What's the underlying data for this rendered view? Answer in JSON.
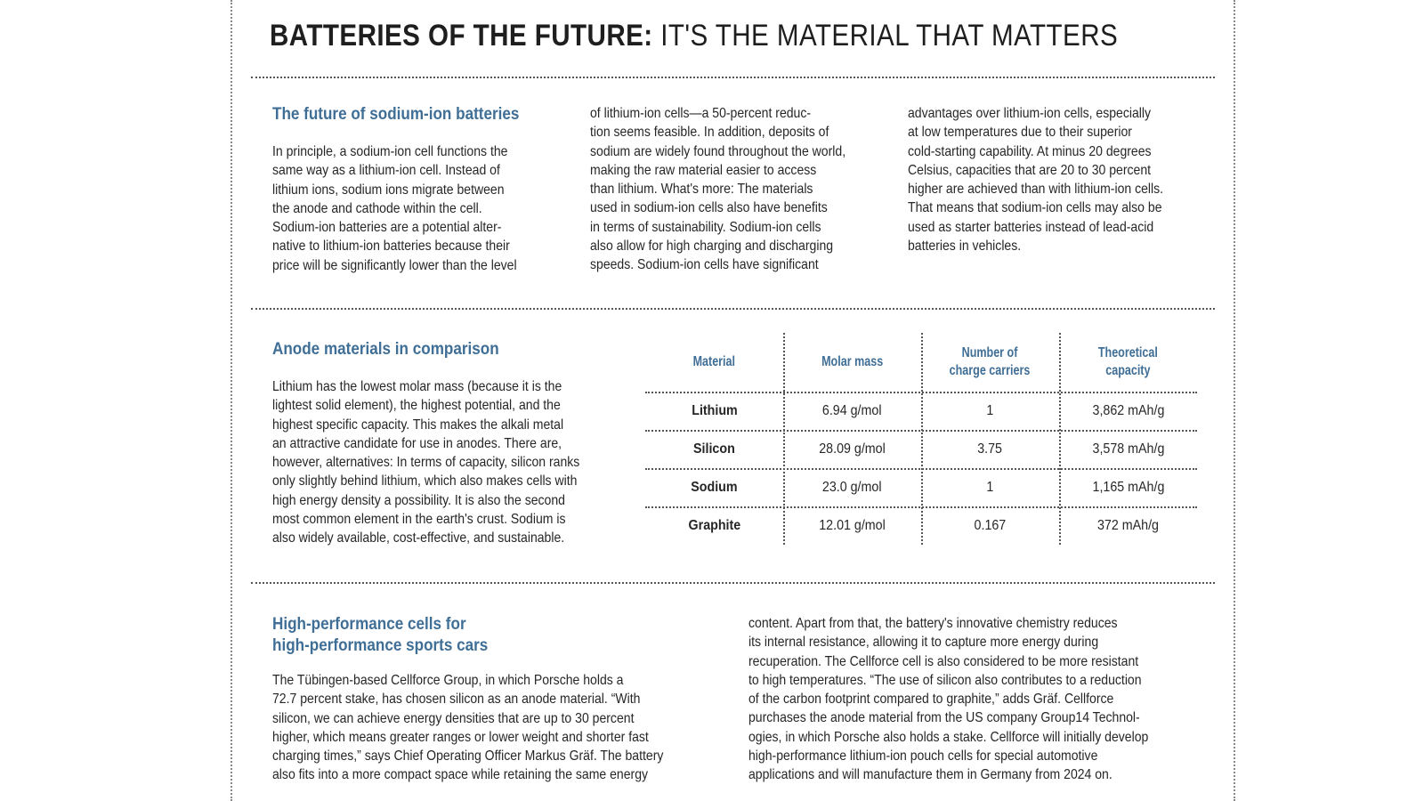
{
  "title": {
    "bold": "BATTERIES OF THE FUTURE:",
    "light": "IT'S THE MATERIAL THAT MATTERS"
  },
  "sodium": {
    "heading": "The future of sodium-ion batteries",
    "col1": [
      "In principle, a sodium-ion cell functions the",
      "same way as a lithium-ion cell. Instead of",
      "lithium ions, sodium ions migrate between",
      "the anode and cathode within the cell.",
      "Sodium-ion batteries are a potential alter-",
      "native to lithium-ion batteries because their",
      "price will be significantly lower than the level"
    ],
    "col2": [
      "of lithium-ion cells—a 50-percent reduc-",
      "tion seems feasible. In addition, deposits of",
      "sodium are widely found throughout the world,",
      "making the raw material easier to access",
      "than lithium. What's more: The materials",
      "used in sodium-ion cells also have benefits",
      "in terms of sustainability. Sodium-ion cells",
      "also allow for high charging and discharging",
      "speeds. Sodium-ion cells have significant"
    ],
    "col3": [
      "advantages over lithium-ion cells, especially",
      "at low temperatures due to their superior",
      "cold-starting capability. At minus 20 degrees",
      "Celsius, capacities that are 20 to 30 percent",
      "higher are achieved than with lithium-ion cells.",
      "That means that sodium-ion cells may also be",
      "used as starter batteries instead of lead-acid",
      "batteries in vehicles."
    ]
  },
  "anode": {
    "heading": "Anode materials in comparison",
    "body": [
      "Lithium has the lowest molar mass (because it is the",
      "lightest solid element), the highest potential, and the",
      "highest specific capacity. This makes the alkali metal",
      "an attractive candidate for use in anodes. There are,",
      "however, alternatives: In terms of capacity, silicon ranks",
      "only slightly behind lithium, which also makes cells with",
      "high energy density a possibility. It is also the second",
      "most common element in the earth's crust. Sodium is",
      "also widely available, cost-effective, and sustainable."
    ],
    "table": {
      "headers": [
        [
          "Material"
        ],
        [
          "Molar mass"
        ],
        [
          "Number of",
          "charge carriers"
        ],
        [
          "Theoretical",
          "capacity"
        ]
      ],
      "rows": [
        [
          "Lithium",
          "6.94 g/mol",
          "1",
          "3,862 mAh/g"
        ],
        [
          "Silicon",
          "28.09 g/mol",
          "3.75",
          "3,578 mAh/g"
        ],
        [
          "Sodium",
          "23.0 g/mol",
          "1",
          "1,165 mAh/g"
        ],
        [
          "Graphite",
          "12.01 g/mol",
          "0.167",
          "372 mAh/g"
        ]
      ]
    }
  },
  "highperf": {
    "heading": [
      "High-performance cells for",
      "high-performance sports cars"
    ],
    "col1": [
      "The Tübingen-based Cellforce Group, in which Porsche holds a",
      "72.7 percent stake, has chosen silicon as an anode material. “With",
      "silicon, we can achieve energy densities that are up to 30 percent",
      "higher, which means greater ranges or lower weight and shorter fast",
      "charging times,” says Chief Operating Officer Markus Gräf. The battery",
      "also fits into a more compact space while retaining the same energy"
    ],
    "col2": [
      "content. Apart from that, the battery's innovative chemistry reduces",
      "its internal resistance, allowing it to capture more energy during",
      "recuperation. The Cellforce cell is also considered to be more resistant",
      "to high temperatures. “The use of silicon also contributes to a reduction",
      "of the carbon footprint compared to graphite,” adds Gräf. Cellforce",
      "purchases the anode material from the US company Group14 Technol-",
      "ogies, in which Porsche also holds a stake. Cellforce will initially develop",
      "high-performance lithium-ion pouch cells for special automotive",
      "applications and will manufacture them in Germany from 2024 on."
    ]
  }
}
